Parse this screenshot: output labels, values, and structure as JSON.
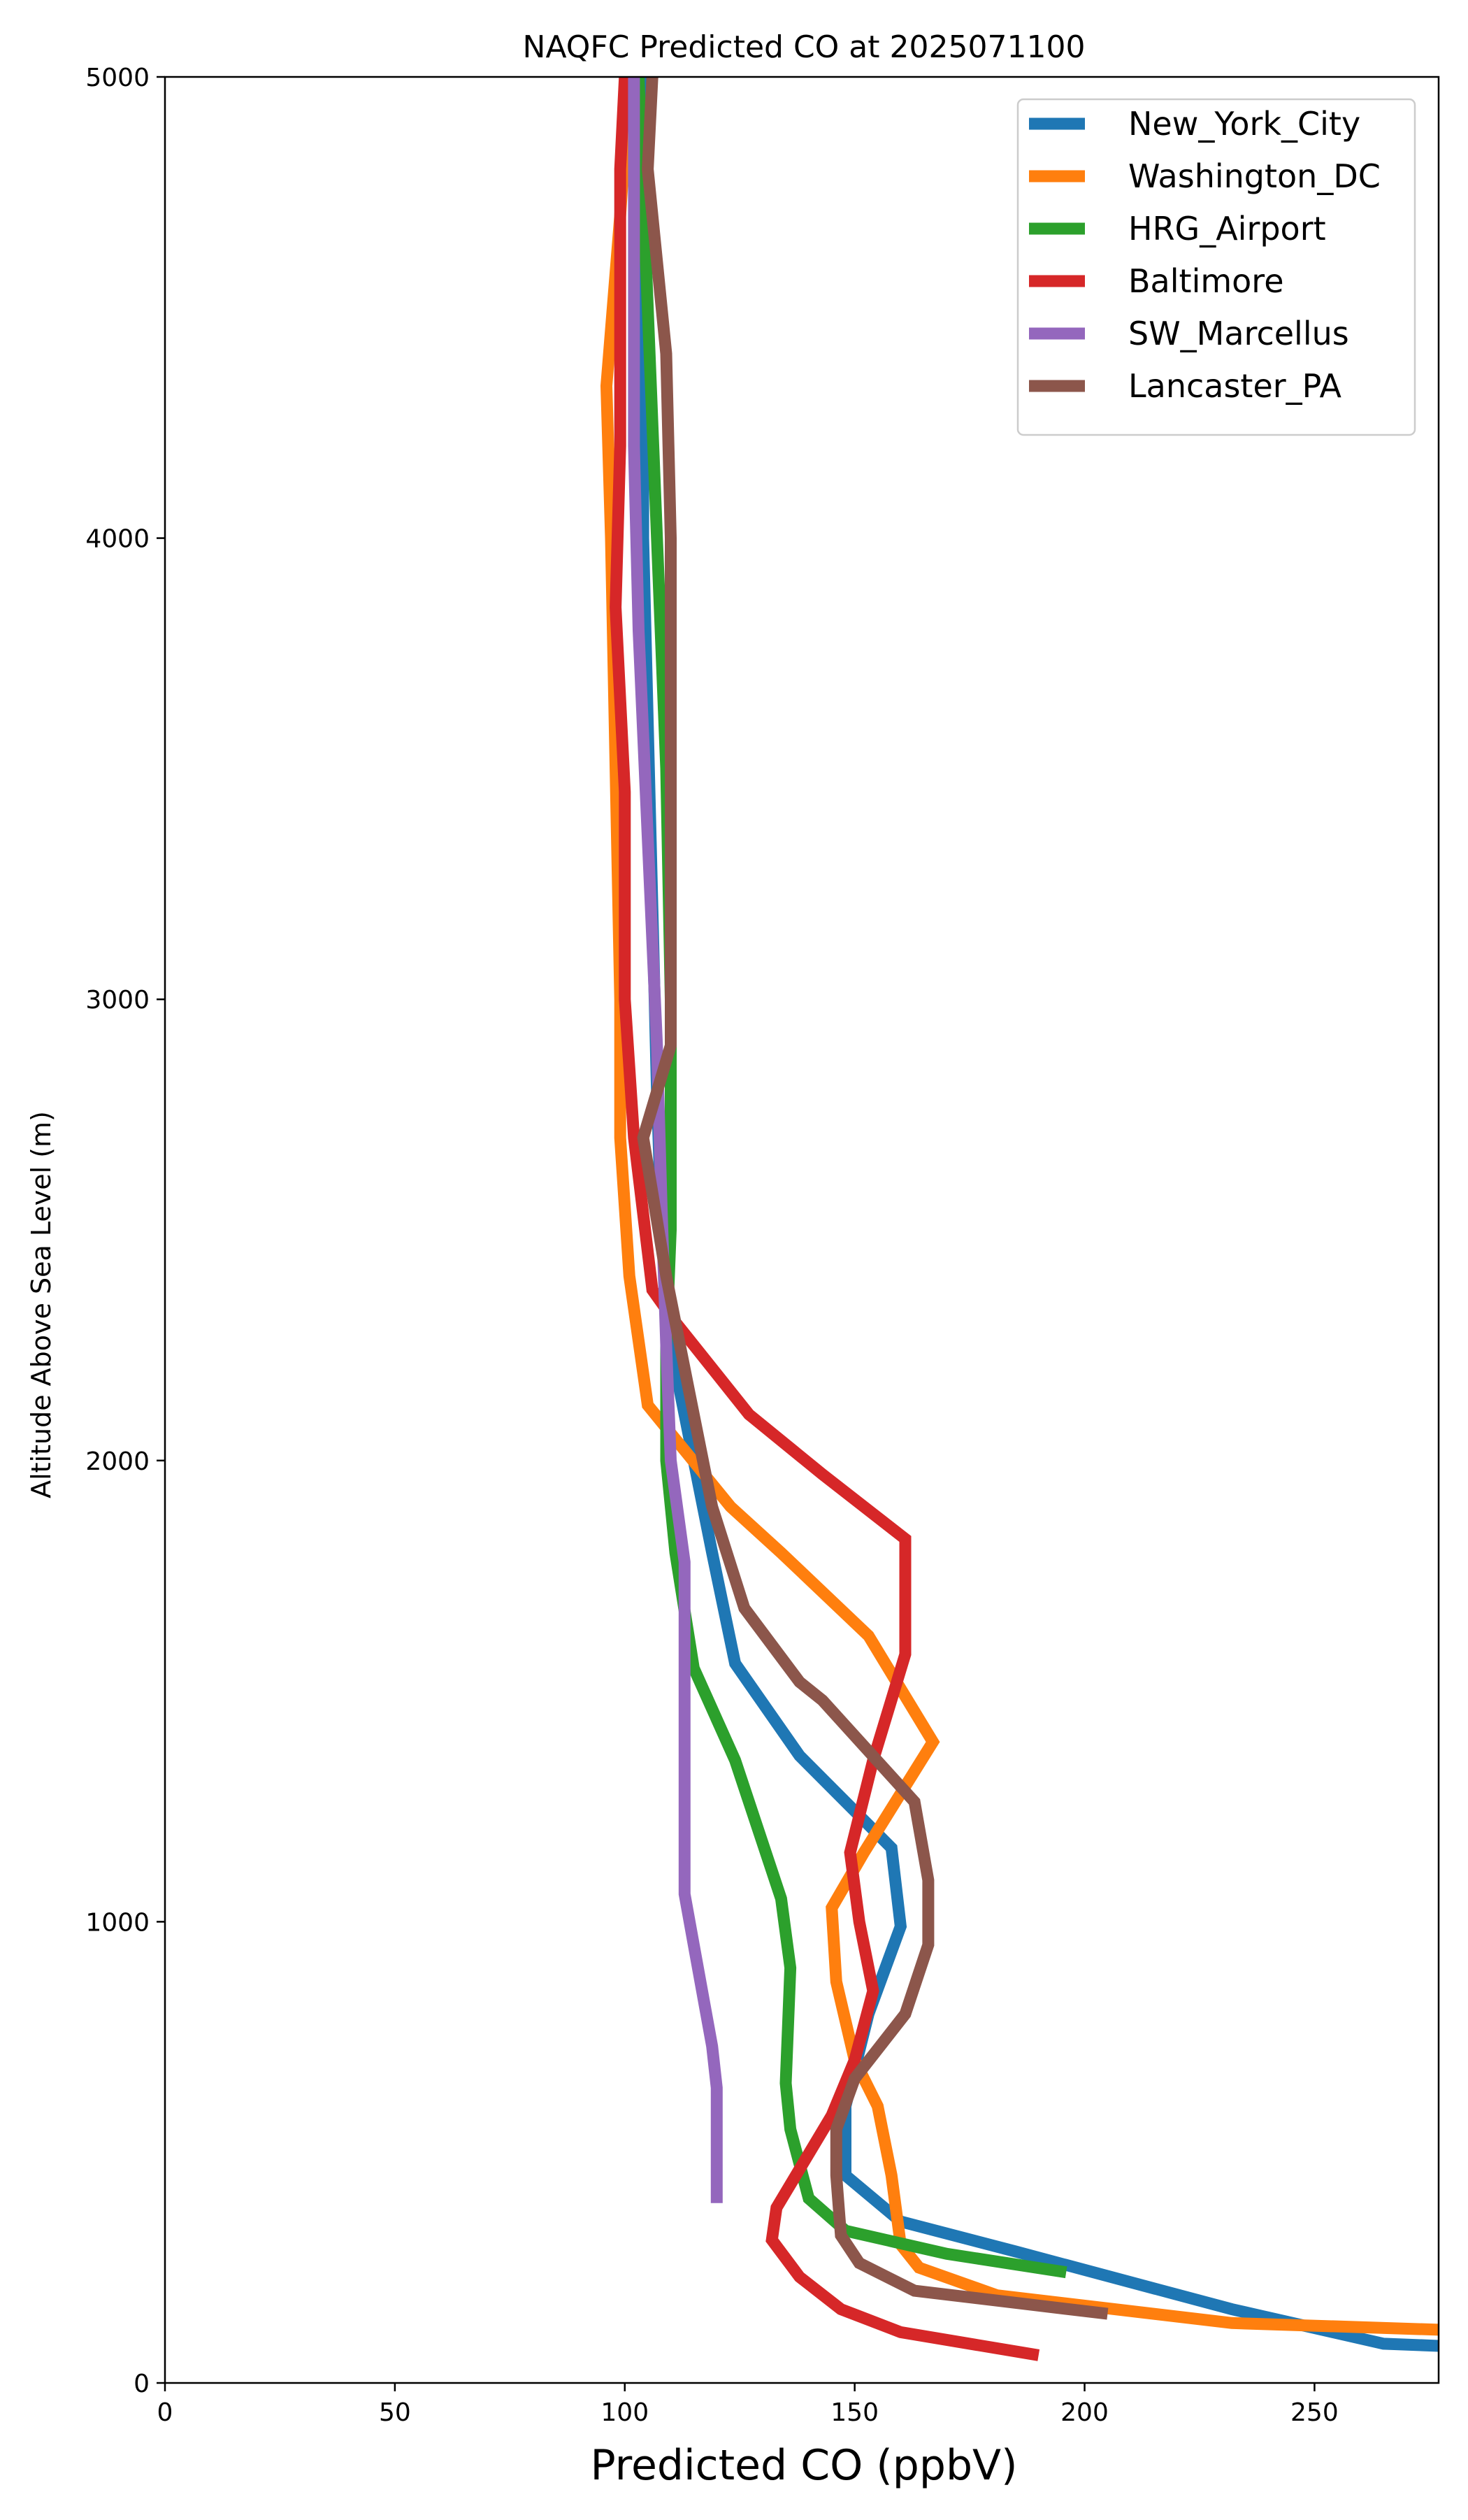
{
  "chart_data": {
    "type": "line",
    "title": "NAQFC Predicted CO at 2025071100",
    "xlabel": "Predicted CO (ppbV)",
    "ylabel": "Altitude Above Sea Level (m)",
    "xlim": [
      0,
      277
    ],
    "ylim": [
      0,
      5000
    ],
    "x_ticks": [
      0,
      50,
      100,
      150,
      200,
      250
    ],
    "y_ticks": [
      0,
      1000,
      2000,
      3000,
      4000,
      5000
    ],
    "x_tick_labels": [
      "0",
      "50",
      "100",
      "150",
      "200",
      "250"
    ],
    "y_tick_labels": [
      "0",
      "1000",
      "2000",
      "3000",
      "4000",
      "5000"
    ],
    "grid": false,
    "legend_position": "top-right",
    "series": [
      {
        "name": "New_York_City",
        "color": "#1f77b4",
        "points": [
          [
            278,
            80
          ],
          [
            265,
            85
          ],
          [
            232,
            160
          ],
          [
            185,
            285
          ],
          [
            160,
            350
          ],
          [
            148,
            450
          ],
          [
            148,
            600
          ],
          [
            153,
            800
          ],
          [
            160,
            990
          ],
          [
            158,
            1160
          ],
          [
            138,
            1360
          ],
          [
            124,
            1560
          ],
          [
            119,
            1800
          ],
          [
            115,
            2000
          ],
          [
            111,
            2200
          ],
          [
            108,
            2500
          ],
          [
            107,
            2800
          ],
          [
            106,
            3200
          ],
          [
            105,
            3600
          ],
          [
            104,
            4000
          ],
          [
            104,
            4500
          ],
          [
            104,
            5000
          ]
        ]
      },
      {
        "name": "Washington_DC",
        "color": "#ff7f0e",
        "points": [
          [
            278,
            115
          ],
          [
            232,
            130
          ],
          [
            181,
            190
          ],
          [
            164,
            250
          ],
          [
            160,
            300
          ],
          [
            158,
            450
          ],
          [
            155,
            600
          ],
          [
            150,
            700
          ],
          [
            146,
            870
          ],
          [
            145,
            1030
          ],
          [
            152,
            1150
          ],
          [
            167,
            1390
          ],
          [
            153,
            1620
          ],
          [
            134,
            1800
          ],
          [
            123,
            1900
          ],
          [
            105,
            2120
          ],
          [
            101,
            2400
          ],
          [
            99,
            2700
          ],
          [
            99,
            3000
          ],
          [
            98,
            3500
          ],
          [
            97,
            4000
          ],
          [
            96,
            4330
          ],
          [
            99,
            4700
          ],
          [
            101,
            5000
          ]
        ]
      },
      {
        "name": "HRG_Airport",
        "color": "#2ca02c",
        "points": [
          [
            196,
            240
          ],
          [
            170,
            280
          ],
          [
            148,
            330
          ],
          [
            140,
            400
          ],
          [
            136,
            550
          ],
          [
            135,
            650
          ],
          [
            136,
            900
          ],
          [
            134,
            1050
          ],
          [
            124,
            1350
          ],
          [
            115,
            1550
          ],
          [
            111,
            1800
          ],
          [
            109,
            2000
          ],
          [
            109,
            2250
          ],
          [
            110,
            2500
          ],
          [
            110,
            3000
          ],
          [
            109,
            3500
          ],
          [
            107,
            4000
          ],
          [
            105,
            4500
          ],
          [
            103,
            5000
          ]
        ]
      },
      {
        "name": "Baltimore",
        "color": "#d62728",
        "points": [
          [
            190,
            60
          ],
          [
            160,
            110
          ],
          [
            147,
            160
          ],
          [
            138,
            230
          ],
          [
            132,
            310
          ],
          [
            133,
            380
          ],
          [
            145,
            580
          ],
          [
            150,
            700
          ],
          [
            154,
            850
          ],
          [
            151,
            1000
          ],
          [
            149,
            1150
          ],
          [
            154,
            1350
          ],
          [
            161,
            1580
          ],
          [
            161,
            1830
          ],
          [
            143,
            1970
          ],
          [
            127,
            2100
          ],
          [
            111,
            2300
          ],
          [
            106,
            2370
          ],
          [
            102,
            2700
          ],
          [
            100,
            3000
          ],
          [
            100,
            3450
          ],
          [
            98,
            3850
          ],
          [
            99,
            4200
          ],
          [
            99,
            4800
          ],
          [
            100,
            5000
          ]
        ]
      },
      {
        "name": "SW_Marcellus",
        "color": "#9467bd",
        "points": [
          [
            120,
            390
          ],
          [
            120,
            500
          ],
          [
            120,
            640
          ],
          [
            119,
            730
          ],
          [
            115,
            950
          ],
          [
            113,
            1060
          ],
          [
            113,
            1350
          ],
          [
            113,
            1550
          ],
          [
            113,
            1780
          ],
          [
            110,
            2000
          ],
          [
            109,
            2250
          ],
          [
            108,
            2550
          ],
          [
            107,
            2900
          ],
          [
            105,
            3350
          ],
          [
            103,
            3800
          ],
          [
            102,
            4200
          ],
          [
            102,
            4600
          ],
          [
            102,
            5000
          ]
        ]
      },
      {
        "name": "Lancaster_PA",
        "color": "#8c564b",
        "points": [
          [
            205,
            150
          ],
          [
            163,
            200
          ],
          [
            151,
            260
          ],
          [
            147,
            320
          ],
          [
            146,
            450
          ],
          [
            146,
            550
          ],
          [
            150,
            660
          ],
          [
            161,
            800
          ],
          [
            166,
            950
          ],
          [
            166,
            1090
          ],
          [
            163,
            1260
          ],
          [
            143,
            1480
          ],
          [
            138,
            1520
          ],
          [
            126,
            1680
          ],
          [
            119,
            1900
          ],
          [
            114,
            2150
          ],
          [
            109,
            2400
          ],
          [
            104,
            2700
          ],
          [
            110,
            2900
          ],
          [
            110,
            3500
          ],
          [
            110,
            4000
          ],
          [
            109,
            4400
          ],
          [
            105,
            4800
          ],
          [
            106,
            5000
          ]
        ]
      }
    ]
  }
}
